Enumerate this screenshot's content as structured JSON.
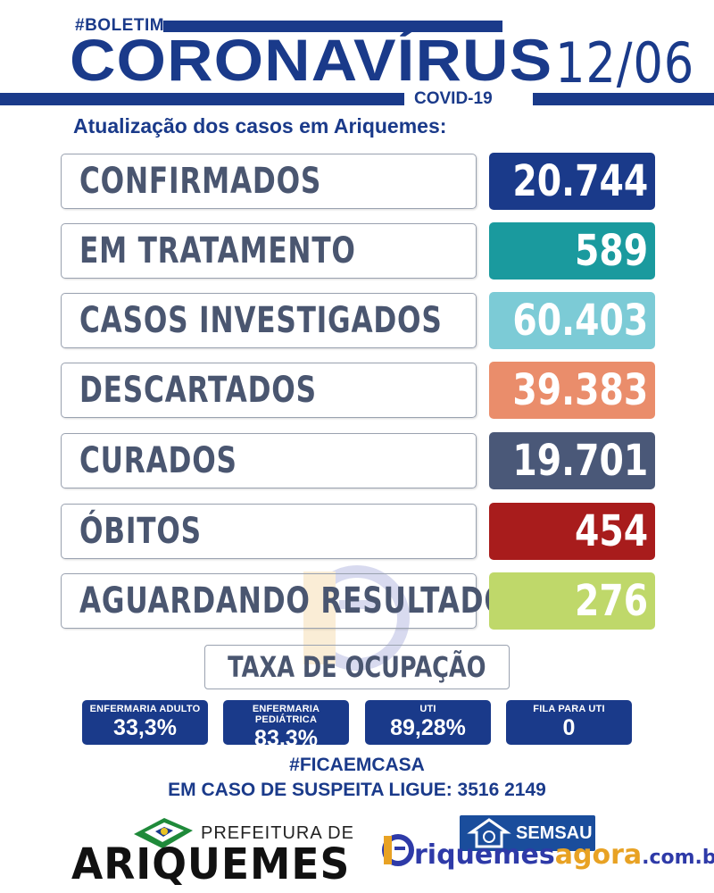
{
  "header": {
    "hashtag": "#BOLETIM",
    "title": "CORONAVÍRUS",
    "covid": "COVID-19",
    "date": "12/06",
    "subtitle": "Atualização dos casos em Ariquemes:"
  },
  "stats": [
    {
      "label": "CONFIRMADOS",
      "value": "20.744",
      "color": "#1a3a8a"
    },
    {
      "label": "EM TRATAMENTO",
      "value": "589",
      "color": "#1a9a9e"
    },
    {
      "label": "CASOS INVESTIGADOS",
      "value": "60.403",
      "color": "#7ccbd6"
    },
    {
      "label": "DESCARTADOS",
      "value": "39.383",
      "color": "#ea8d6b"
    },
    {
      "label": "CURADOS",
      "value": "19.701",
      "color": "#4a5878"
    },
    {
      "label": "ÓBITOS",
      "value": "454",
      "color": "#a81c1c"
    },
    {
      "label": "AGUARDANDO RESULTADO",
      "value": "276",
      "color": "#bfd86a"
    }
  ],
  "occupancy": {
    "title": "TAXA DE OCUPAÇÃO",
    "items": [
      {
        "label": "ENFERMARIA ADULTO",
        "value": "33,3%"
      },
      {
        "label": "ENFERMARIA PEDIÁTRICA",
        "value": "83,3%"
      },
      {
        "label": "UTI",
        "value": "89,28%"
      },
      {
        "label": "FILA PARA UTI",
        "value": "0"
      }
    ]
  },
  "footer": {
    "hashtag": "#FICAEMCASA",
    "phone_line": "EM CASO DE SUSPEITA LIGUE: 3516 2149",
    "prefeitura_label": "PREFEITURA DE",
    "city": "ARIQUEMES",
    "semsau": "SEMSAU",
    "site_part1": "riquemes",
    "site_part2": "agora",
    "site_part3": ".com.br"
  }
}
